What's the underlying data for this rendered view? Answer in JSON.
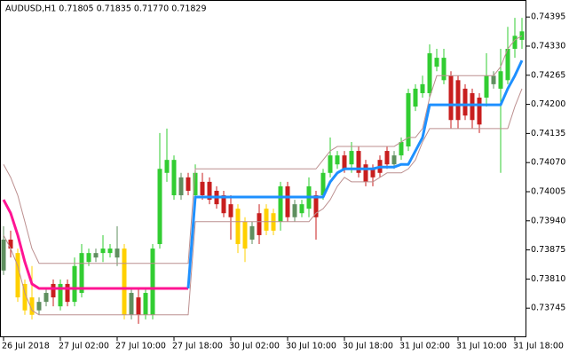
{
  "chart_data": {
    "type": "candlestick",
    "title": "AUDUSD,H1  0.71805 0.71835 0.71770 0.71829",
    "palette": {
      "G": "#32cd32",
      "D": "#5f8f5f",
      "R": "#c81e1e",
      "Y": "#ffd000"
    },
    "candles": {
      "open": [
        0.73829,
        0.73898,
        0.73868,
        0.73799,
        0.73769,
        0.7374,
        0.73759,
        0.73799,
        0.73749,
        0.73799,
        0.73759,
        0.73779,
        0.73848,
        0.73858,
        0.73868,
        0.73868,
        0.73858,
        0.73878,
        0.7373,
        0.73769,
        0.7373,
        0.7373,
        0.73888,
        0.74047,
        0.73997,
        0.73997,
        0.74037,
        0.73997,
        0.74027,
        0.74027,
        0.74007,
        0.73997,
        0.73977,
        0.73967,
        0.73938,
        0.73898,
        0.73957,
        0.73967,
        0.73957,
        0.73938,
        0.74017,
        0.73948,
        0.73957,
        0.73967,
        0.73997,
        0.73997,
        0.74047,
        0.74066,
        0.74086,
        0.74066,
        0.74096,
        0.74066,
        0.74056,
        0.74076,
        0.74096,
        0.74066,
        0.74086,
        0.74106,
        0.74195,
        0.74225,
        0.74225,
        0.74284,
        0.74254,
        0.74264,
        0.74254,
        0.74235,
        0.74225,
        0.74215,
        0.74215,
        0.74245,
        0.74235,
        0.74254,
        0.74324,
        0.74344
      ],
      "high": [
        0.73928,
        0.73918,
        0.73878,
        0.73809,
        0.73839,
        0.73769,
        0.73789,
        0.73809,
        0.73809,
        0.73809,
        0.73858,
        0.73888,
        0.73878,
        0.73878,
        0.73908,
        0.73888,
        0.73928,
        0.73888,
        0.73789,
        0.73789,
        0.73789,
        0.73888,
        0.74136,
        0.74146,
        0.74086,
        0.74047,
        0.74047,
        0.74066,
        0.74047,
        0.74037,
        0.74017,
        0.74007,
        0.73997,
        0.73977,
        0.73948,
        0.73938,
        0.73977,
        0.73977,
        0.73967,
        0.74027,
        0.74027,
        0.73987,
        0.73987,
        0.74037,
        0.74007,
        0.74056,
        0.74126,
        0.74096,
        0.74096,
        0.74116,
        0.74106,
        0.74076,
        0.74066,
        0.74086,
        0.74106,
        0.74096,
        0.74126,
        0.74235,
        0.74245,
        0.74264,
        0.74334,
        0.74324,
        0.74324,
        0.74274,
        0.74264,
        0.74245,
        0.74235,
        0.74225,
        0.74314,
        0.74274,
        0.74324,
        0.74373,
        0.74393,
        0.74393
      ],
      "low": [
        0.73819,
        0.73858,
        0.73759,
        0.7373,
        0.7372,
        0.7373,
        0.73749,
        0.73749,
        0.7374,
        0.73749,
        0.73749,
        0.73769,
        0.73839,
        0.73848,
        0.73848,
        0.73858,
        0.73839,
        0.7372,
        0.7372,
        0.7371,
        0.7372,
        0.7372,
        0.73878,
        0.74027,
        0.73987,
        0.73987,
        0.73997,
        0.73987,
        0.73987,
        0.73977,
        0.73967,
        0.73948,
        0.73898,
        0.73868,
        0.73848,
        0.73888,
        0.73888,
        0.73908,
        0.73908,
        0.73918,
        0.73938,
        0.73938,
        0.73948,
        0.73948,
        0.73898,
        0.73987,
        0.74037,
        0.74056,
        0.74047,
        0.74047,
        0.74037,
        0.74017,
        0.74017,
        0.74037,
        0.74056,
        0.74056,
        0.74076,
        0.74096,
        0.74185,
        0.74215,
        0.74215,
        0.74274,
        0.74245,
        0.74146,
        0.74146,
        0.74165,
        0.74146,
        0.74136,
        0.74195,
        0.74235,
        0.74047,
        0.74245,
        0.74304,
        0.74324
      ],
      "close": [
        0.73898,
        0.73878,
        0.73769,
        0.7374,
        0.7373,
        0.73759,
        0.73779,
        0.73769,
        0.73799,
        0.73759,
        0.73839,
        0.73868,
        0.73868,
        0.73868,
        0.73878,
        0.73878,
        0.73878,
        0.7373,
        0.73779,
        0.7373,
        0.73779,
        0.73878,
        0.74056,
        0.74076,
        0.74076,
        0.74037,
        0.74007,
        0.74047,
        0.73997,
        0.73987,
        0.73977,
        0.73957,
        0.73948,
        0.73888,
        0.73878,
        0.73928,
        0.73908,
        0.73918,
        0.73918,
        0.74017,
        0.73948,
        0.73977,
        0.73977,
        0.74017,
        0.73948,
        0.74047,
        0.74086,
        0.74086,
        0.74056,
        0.74096,
        0.74047,
        0.74027,
        0.74037,
        0.74047,
        0.74066,
        0.74086,
        0.74116,
        0.74225,
        0.74235,
        0.74245,
        0.74314,
        0.74304,
        0.74304,
        0.74165,
        0.74165,
        0.74175,
        0.74165,
        0.74155,
        0.74264,
        0.74264,
        0.74274,
        0.74324,
        0.74353,
        0.74363
      ],
      "colors": [
        "D",
        "R",
        "Y",
        "Y",
        "Y",
        "D",
        "D",
        "R",
        "G",
        "R",
        "G",
        "G",
        "G",
        "D",
        "G",
        "G",
        "D",
        "Y",
        "D",
        "R",
        "G",
        "G",
        "G",
        "G",
        "G",
        "D",
        "R",
        "G",
        "R",
        "R",
        "R",
        "R",
        "R",
        "Y",
        "Y",
        "D",
        "R",
        "Y",
        "Y",
        "G",
        "R",
        "D",
        "G",
        "G",
        "R",
        "G",
        "G",
        "G",
        "R",
        "G",
        "R",
        "R",
        "R",
        "R",
        "R",
        "D",
        "G",
        "G",
        "G",
        "G",
        "G",
        "G",
        "G",
        "R",
        "R",
        "R",
        "R",
        "R",
        "G",
        "D",
        "G",
        "G",
        "G",
        "G"
      ]
    },
    "lines": [
      {
        "color": "#bc8f8f",
        "width": 1,
        "values": [
          0.74066,
          0.74037,
          0.73997,
          0.73938,
          0.73878,
          0.73845,
          0.73845,
          0.73845,
          0.73845,
          0.73845,
          0.73845,
          0.73845,
          0.73845,
          0.73845,
          0.73845,
          0.73845,
          0.73845,
          0.73845,
          0.73845,
          0.73845,
          0.73845,
          0.73845,
          0.73845,
          0.73845,
          0.73845,
          0.73845,
          0.73845,
          0.74056,
          0.74056,
          0.74056,
          0.74056,
          0.74056,
          0.74056,
          0.74056,
          0.74056,
          0.74056,
          0.74056,
          0.74056,
          0.74056,
          0.74056,
          0.74056,
          0.74056,
          0.74056,
          0.74056,
          0.74056,
          0.74076,
          0.74096,
          0.74106,
          0.74106,
          0.74106,
          0.74106,
          0.74106,
          0.74106,
          0.74106,
          0.74106,
          0.74106,
          0.74116,
          0.74126,
          0.74126,
          0.74146,
          0.74215,
          0.74264,
          0.74264,
          0.74264,
          0.74264,
          0.74264,
          0.74264,
          0.74264,
          0.74264,
          0.74264,
          0.74284,
          0.74324,
          0.74344,
          0.74353
        ]
      },
      {
        "color": "#bc8f8f",
        "width": 1,
        "values": [
          0.73908,
          0.73878,
          0.73839,
          0.73779,
          0.7374,
          0.7373,
          0.7373,
          0.7373,
          0.7373,
          0.7373,
          0.7373,
          0.7373,
          0.7373,
          0.7373,
          0.7373,
          0.7373,
          0.7373,
          0.7373,
          0.7373,
          0.7373,
          0.7373,
          0.7373,
          0.7373,
          0.7373,
          0.7373,
          0.7373,
          0.7373,
          0.73938,
          0.73938,
          0.73938,
          0.73938,
          0.73938,
          0.73938,
          0.73938,
          0.73938,
          0.73938,
          0.73938,
          0.73938,
          0.73938,
          0.73938,
          0.73938,
          0.73938,
          0.73938,
          0.73938,
          0.73957,
          0.73967,
          0.73987,
          0.74017,
          0.74037,
          0.74027,
          0.74027,
          0.74027,
          0.74027,
          0.74037,
          0.74047,
          0.74047,
          0.74047,
          0.74056,
          0.74076,
          0.74116,
          0.74146,
          0.74146,
          0.74146,
          0.74146,
          0.74146,
          0.74146,
          0.74146,
          0.74146,
          0.74146,
          0.74146,
          0.74146,
          0.74146,
          0.74195,
          0.74235
        ]
      },
      {
        "color": "#ff1493",
        "width": 3,
        "values": [
          0.73987,
          0.73957,
          0.73908,
          0.73848,
          0.73799,
          0.73789,
          0.73789,
          0.73789,
          0.73789,
          0.73789,
          0.73789,
          0.73789,
          0.73789,
          0.73789,
          0.73789,
          0.73789,
          0.73789,
          0.73789,
          0.73789,
          0.73789,
          0.73789,
          0.73789,
          0.73789,
          0.73789,
          0.73789,
          0.73789,
          0.73789,
          null,
          null,
          null,
          null,
          null,
          null,
          null,
          null,
          null,
          null,
          null,
          null,
          null,
          null,
          null,
          null,
          null,
          null,
          null,
          null,
          null,
          null,
          null,
          null,
          null,
          null,
          null,
          null,
          null,
          null,
          null,
          null,
          null,
          null,
          null,
          null,
          null,
          null,
          null,
          null,
          null,
          null,
          null,
          null,
          null,
          null,
          null
        ]
      },
      {
        "color": "#1e90ff",
        "width": 3,
        "values": [
          null,
          null,
          null,
          null,
          null,
          null,
          null,
          null,
          null,
          null,
          null,
          null,
          null,
          null,
          null,
          null,
          null,
          null,
          null,
          null,
          null,
          null,
          null,
          null,
          null,
          null,
          0.73789,
          0.73993,
          0.73993,
          0.73993,
          0.73993,
          0.73993,
          0.73993,
          0.73993,
          0.73993,
          0.73993,
          0.73993,
          0.73993,
          0.73993,
          0.73993,
          0.73993,
          0.73993,
          0.73993,
          0.73993,
          0.73993,
          0.73993,
          0.74027,
          0.74047,
          0.74056,
          0.74056,
          0.74056,
          0.74056,
          0.74056,
          0.7406,
          0.7406,
          0.7406,
          0.74066,
          0.74066,
          0.74096,
          0.74126,
          0.74199,
          0.74199,
          0.74199,
          0.74199,
          0.74199,
          0.74199,
          0.74199,
          0.74199,
          0.74199,
          0.74199,
          0.74199,
          0.74235,
          0.74264,
          0.74298
        ]
      }
    ],
    "xlim": [
      -0.5,
      73.625
    ],
    "xticks": [
      {
        "value": 0,
        "label": "26 Jul 2018"
      },
      {
        "value": 8,
        "label": "27 Jul 02:00"
      },
      {
        "value": 16,
        "label": "27 Jul 10:00"
      },
      {
        "value": 24,
        "label": "27 Jul 18:00"
      },
      {
        "value": 32,
        "label": "30 Jul 02:00"
      },
      {
        "value": 40,
        "label": "30 Jul 10:00"
      },
      {
        "value": 48,
        "label": "30 Jul 18:00"
      },
      {
        "value": 56,
        "label": "31 Jul 02:00"
      },
      {
        "value": 64,
        "label": "31 Jul 10:00"
      },
      {
        "value": 72,
        "label": "31 Jul 18:00"
      }
    ],
    "ylim": [
      0.7368,
      0.74433
    ],
    "yticks": [
      0.74395,
      {
        "value": 0.7433,
        "label": "0.74330"
      },
      0.74265,
      {
        "value": 0.742,
        "label": "0.74200"
      },
      0.74135,
      {
        "value": 0.7407,
        "label": "0.74070"
      },
      0.74005,
      {
        "value": 0.7394,
        "label": "0.73940"
      },
      0.73875,
      {
        "value": 0.7381,
        "label": "0.73810"
      },
      0.73745
    ]
  }
}
